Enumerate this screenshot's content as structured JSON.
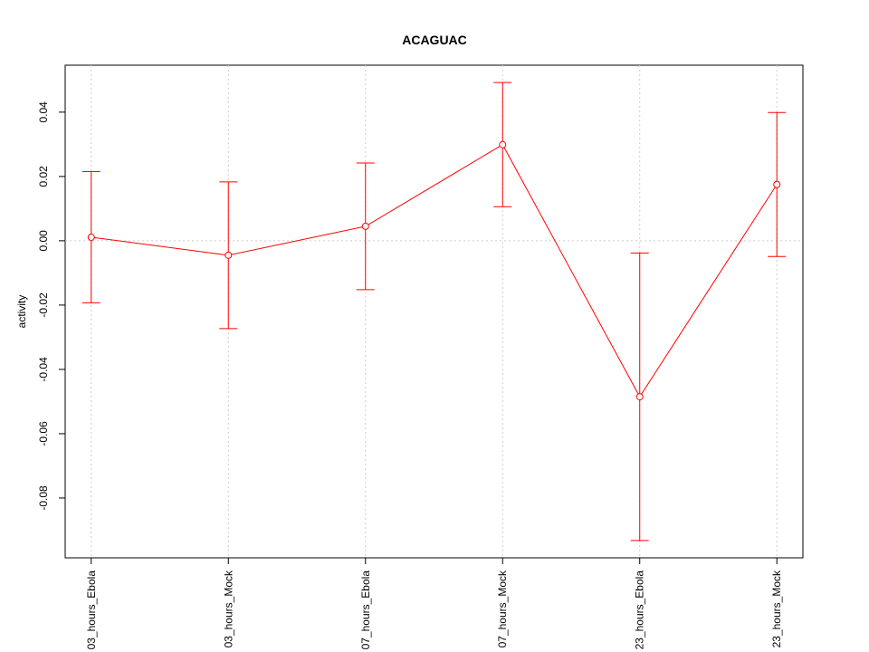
{
  "chart_data": {
    "type": "line",
    "title": "ACAGUAC",
    "y_label": "activity",
    "categories": [
      "03_hours_Ebola",
      "03_hours_Mock",
      "07_hours_Ebola",
      "07_hours_Mock",
      "23_hours_Ebola",
      "23_hours_Mock"
    ],
    "series": [
      {
        "color": "#ff0000",
        "values": [
          0.0011,
          -0.0045,
          0.0045,
          0.0299,
          -0.0485,
          0.0175
        ],
        "errors": [
          0.0204,
          0.0228,
          0.0197,
          0.0193,
          0.0447,
          0.0224
        ]
      }
    ],
    "ylim": [
      -0.0986,
      0.0546
    ],
    "yticks": [
      -0.08,
      -0.06,
      -0.04,
      -0.02,
      {
        "value": 0,
        "label": "0.00"
      },
      0.02,
      0.04
    ],
    "grid": true,
    "hline": 0
  }
}
